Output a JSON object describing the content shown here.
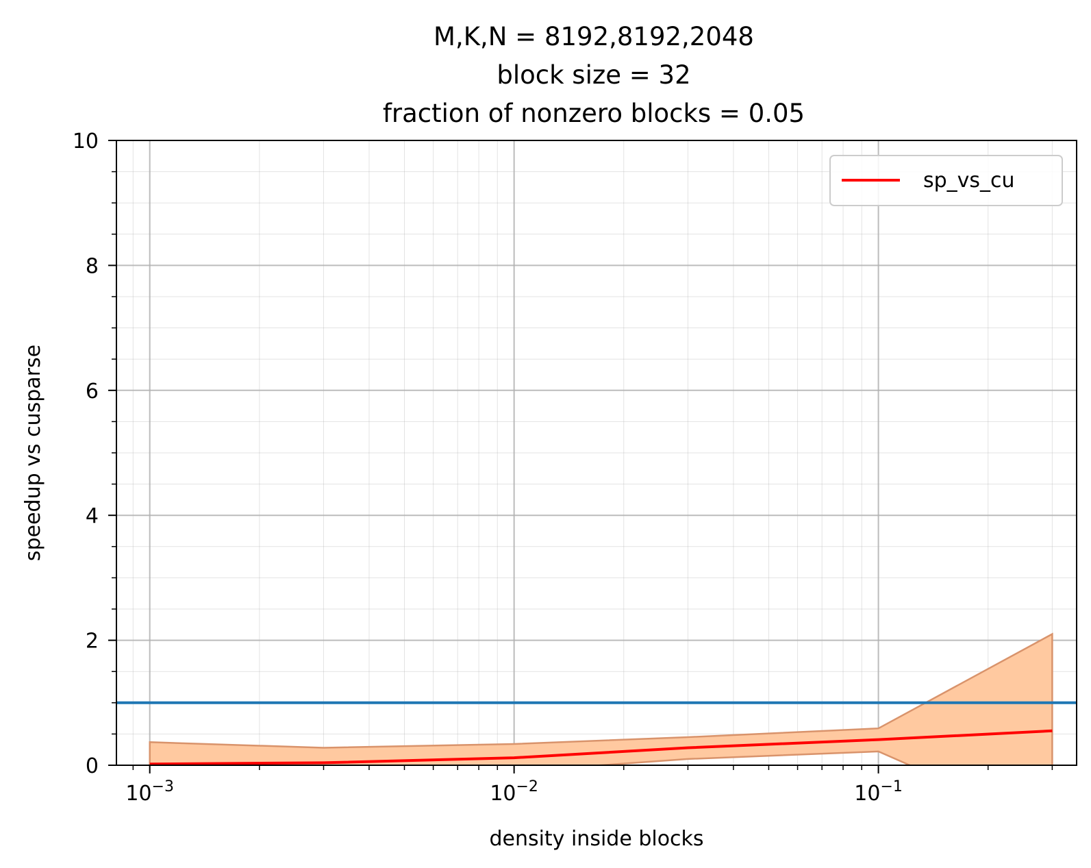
{
  "chart_data": {
    "type": "line",
    "title": [
      "M,K,N = 8192,8192,2048",
      "block size = 32",
      "fraction of nonzero blocks = 0.05"
    ],
    "xlabel": "density inside blocks",
    "ylabel": "speedup vs cusparse",
    "xscale": "log",
    "xlim": [
      0.00081,
      0.35
    ],
    "ylim": [
      0,
      10
    ],
    "x_ticks": [
      {
        "value": 0.001,
        "base": "10",
        "exp": "−3"
      },
      {
        "value": 0.01,
        "base": "10",
        "exp": "−2"
      },
      {
        "value": 0.1,
        "base": "10",
        "exp": "−1"
      }
    ],
    "y_ticks": [
      0,
      2,
      4,
      6,
      8,
      10
    ],
    "grid": true,
    "legend": {
      "position": "top-right",
      "entries": [
        {
          "label": "sp_vs_cu",
          "color": "#ff0000"
        }
      ]
    },
    "series": [
      {
        "name": "sp_vs_cu",
        "color": "#ff0000",
        "x": [
          0.001,
          0.003,
          0.01,
          0.03,
          0.1,
          0.3
        ],
        "y": [
          0.02,
          0.04,
          0.12,
          0.28,
          0.41,
          0.55
        ]
      }
    ],
    "band": {
      "color": "#ffc9a0",
      "edge": "#d9936b",
      "x": [
        0.001,
        0.003,
        0.01,
        0.03,
        0.1,
        0.3
      ],
      "upper": [
        0.37,
        0.28,
        0.34,
        0.45,
        0.59,
        2.1
      ],
      "lower": [
        -0.33,
        -0.2,
        -0.1,
        0.1,
        0.22,
        -1.0
      ]
    },
    "reference_line": {
      "y": 1.0,
      "color": "#1f77b4"
    }
  }
}
